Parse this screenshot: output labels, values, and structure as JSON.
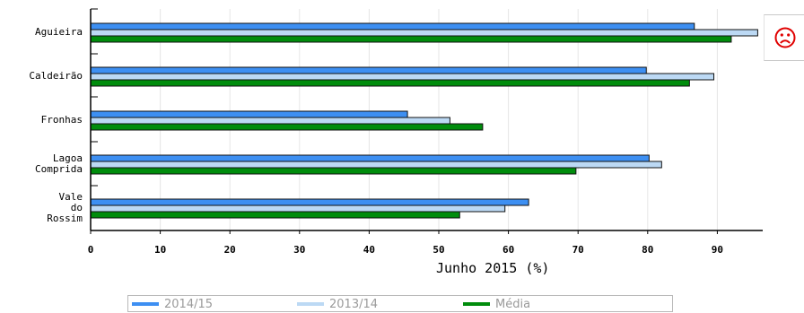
{
  "chart_data": {
    "type": "bar",
    "orientation": "horizontal",
    "categories": [
      "Aguieira",
      "Caldeirão",
      "Fronhas",
      "Lagoa\nComprida",
      "Vale\ndo\nRossim"
    ],
    "series": [
      {
        "name": "2014/15",
        "color": "#3d8ff2",
        "values": [
          86.7,
          79.8,
          45.5,
          80.2,
          62.9
        ]
      },
      {
        "name": "2013/14",
        "color": "#bcd9f4",
        "values": [
          95.8,
          89.5,
          51.6,
          82.0,
          59.5
        ]
      },
      {
        "name": "Média",
        "color": "#008c0c",
        "values": [
          92.0,
          86.0,
          56.3,
          69.7,
          53.0
        ]
      }
    ],
    "xlabel": "Junho 2015 (%)",
    "xlim": [
      0,
      100
    ],
    "xticks": [
      "0",
      "10",
      "20",
      "30",
      "40",
      "50",
      "60",
      "70",
      "80",
      "90"
    ],
    "grid": true,
    "legend_position": "bottom"
  },
  "status_icon": "sad-face-icon",
  "status_color": "#e00000"
}
